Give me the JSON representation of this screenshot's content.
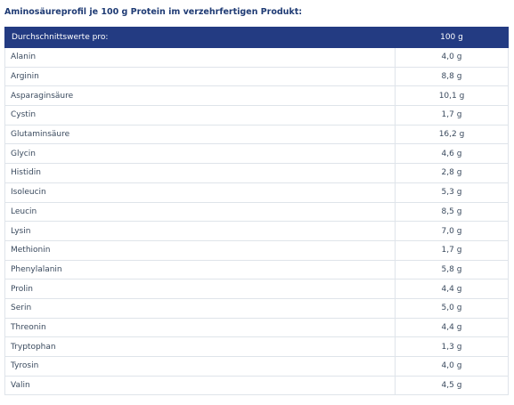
{
  "heading": "Aminosäureprofil je 100 g Protein im verzehrfertigen Produkt:",
  "table": {
    "header": {
      "name": "Durchschnittswerte pro:",
      "value": "100 g"
    },
    "rows": [
      {
        "name": "Alanin",
        "value": "4,0 g"
      },
      {
        "name": "Arginin",
        "value": "8,8 g"
      },
      {
        "name": "Asparaginsäure",
        "value": "10,1 g"
      },
      {
        "name": "Cystin",
        "value": "1,7 g"
      },
      {
        "name": "Glutaminsäure",
        "value": "16,2 g"
      },
      {
        "name": "Glycin",
        "value": "4,6 g"
      },
      {
        "name": "Histidin",
        "value": "2,8 g"
      },
      {
        "name": "Isoleucin",
        "value": "5,3 g"
      },
      {
        "name": "Leucin",
        "value": "8,5 g"
      },
      {
        "name": "Lysin",
        "value": "7,0 g"
      },
      {
        "name": "Methionin",
        "value": "1,7 g"
      },
      {
        "name": "Phenylalanin",
        "value": "5,8 g"
      },
      {
        "name": "Prolin",
        "value": "4,4 g"
      },
      {
        "name": "Serin",
        "value": "5,0 g"
      },
      {
        "name": "Threonin",
        "value": "4,4 g"
      },
      {
        "name": "Tryptophan",
        "value": "1,3 g"
      },
      {
        "name": "Tyrosin",
        "value": "4,0 g"
      },
      {
        "name": "Valin",
        "value": "4,5 g"
      }
    ]
  }
}
